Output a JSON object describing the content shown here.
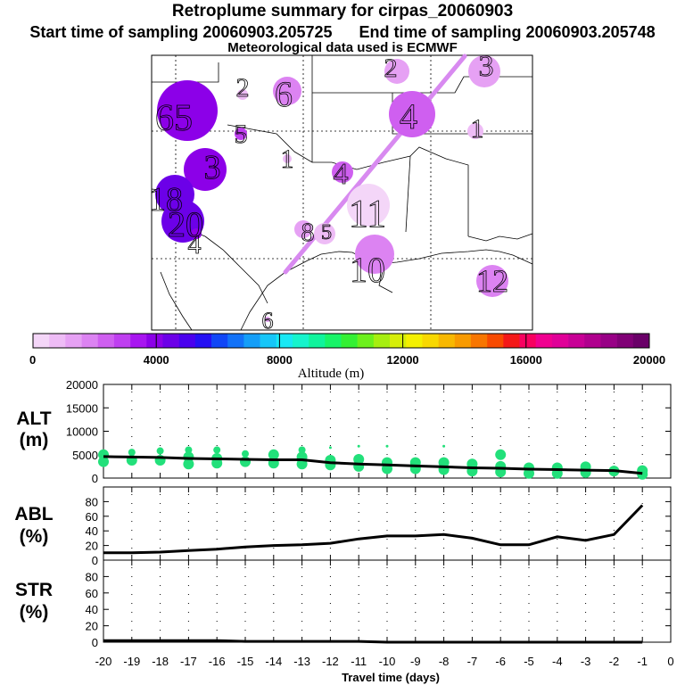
{
  "header": {
    "title": "Retroplume summary for cirpas_20060903",
    "start_label": "Start time of sampling 20060903.205725",
    "end_label": "End time of sampling 20060903.205748",
    "met_label": "Meteorological data used is ECMWF"
  },
  "colorbar": {
    "label": "Altitude (m)",
    "ticks": [
      "0",
      "4000",
      "8000",
      "12000",
      "16000",
      "20000"
    ],
    "colors": [
      "#f4d6f8",
      "#eebcf6",
      "#e6a1f4",
      "#dc83f2",
      "#cf5ff0",
      "#bf3ff0",
      "#a815f0",
      "#8c00e8",
      "#6c00e8",
      "#4a00ee",
      "#2410f4",
      "#1046f6",
      "#1272f8",
      "#149ef8",
      "#16c6f8",
      "#18e8f4",
      "#16f4cc",
      "#10f49c",
      "#18f468",
      "#34f034",
      "#6cf01c",
      "#a6ee10",
      "#d6ee08",
      "#f4f000",
      "#f8d800",
      "#f8b800",
      "#f89a00",
      "#f87600",
      "#f84a00",
      "#f41818",
      "#f80060",
      "#f00090",
      "#e00098",
      "#c80096",
      "#b0008e",
      "#980086",
      "#800076",
      "#6a0068"
    ],
    "min": 0,
    "max": 20000
  },
  "map": {
    "plume_color": "#d88af0",
    "markers": [
      {
        "label": "6",
        "alt": 1800
      },
      {
        "label": "2",
        "alt": 600
      },
      {
        "label": "5",
        "alt": 2800
      },
      {
        "label": "3",
        "alt": 1200
      },
      {
        "label": "2",
        "alt": 1500
      },
      {
        "label": "4",
        "alt": 2500
      },
      {
        "label": "1",
        "alt": 900
      },
      {
        "label": "1",
        "alt": 1000
      },
      {
        "label": "65",
        "alt": 4200
      },
      {
        "label": "3",
        "alt": 3800
      },
      {
        "label": "18",
        "alt": 4600
      },
      {
        "label": "20",
        "alt": 4400
      },
      {
        "label": "4",
        "alt": 4000
      },
      {
        "label": "11",
        "alt": 300
      },
      {
        "label": "8",
        "alt": 1300
      },
      {
        "label": "5",
        "alt": 900
      },
      {
        "label": "4",
        "alt": 2300
      },
      {
        "label": "10",
        "alt": 2000
      },
      {
        "label": "12",
        "alt": 1800
      },
      {
        "label": "6",
        "alt": 1500
      }
    ]
  },
  "chart_data": [
    {
      "type": "scatter",
      "panel": "ALT",
      "ylabel_line1": "ALT",
      "ylabel_line2": "(m)",
      "ylim": [
        0,
        20000
      ],
      "yticks": [
        "20000",
        "15000",
        "10000",
        "5000",
        "0"
      ],
      "point_color": "#22e07a",
      "series": [
        {
          "name": "mean altitude",
          "type": "line",
          "x": [
            -20,
            -19,
            -18,
            -17,
            -16,
            -15,
            -14,
            -13,
            -12,
            -11,
            -10,
            -9,
            -8,
            -7,
            -6,
            -5,
            -4,
            -3,
            -2,
            -1
          ],
          "y": [
            4600,
            4500,
            4400,
            4200,
            4100,
            4000,
            3900,
            3900,
            3300,
            3000,
            2800,
            2600,
            2400,
            2200,
            2100,
            1900,
            1800,
            1700,
            1600,
            1000
          ]
        },
        {
          "name": "plume percentiles",
          "type": "scatter",
          "x": [
            -20,
            -20,
            -19,
            -19,
            -18,
            -18,
            -17,
            -17,
            -17,
            -16,
            -16,
            -16,
            -15,
            -15,
            -14,
            -14,
            -13,
            -13,
            -13,
            -12,
            -12,
            -12,
            -11,
            -11,
            -11,
            -10,
            -10,
            -10,
            -9,
            -9,
            -8,
            -8,
            -8,
            -7,
            -7,
            -6,
            -6,
            -6,
            -5,
            -5,
            -4,
            -4,
            -3,
            -3,
            -2,
            -1,
            -1
          ],
          "y": [
            5000,
            3500,
            5500,
            3800,
            5800,
            3800,
            6000,
            4500,
            3000,
            6000,
            4200,
            3200,
            5200,
            3500,
            5000,
            3200,
            6000,
            4500,
            3000,
            6500,
            3800,
            2800,
            6800,
            4000,
            2500,
            6800,
            3300,
            2000,
            3300,
            2000,
            6800,
            3300,
            1800,
            3000,
            1500,
            5000,
            2500,
            1300,
            2200,
            1000,
            2200,
            1000,
            2400,
            1200,
            1500,
            1600,
            800
          ]
        }
      ]
    },
    {
      "type": "line",
      "panel": "ABL",
      "ylabel_line1": "ABL",
      "ylabel_line2": "(%)",
      "ylim": [
        0,
        100
      ],
      "yticks": [
        "80",
        "60",
        "40",
        "20",
        "0"
      ],
      "x": [
        -20,
        -19,
        -18,
        -17,
        -16,
        -15,
        -14,
        -13,
        -12,
        -11,
        -10,
        -9,
        -8,
        -7,
        -6,
        -5,
        -4,
        -3,
        -2,
        -1
      ],
      "y": [
        10,
        10,
        11,
        13,
        15,
        18,
        20,
        21,
        23,
        29,
        33,
        33,
        35,
        30,
        21,
        21,
        32,
        27,
        35,
        75
      ]
    },
    {
      "type": "line",
      "panel": "STR",
      "ylabel_line1": "STR",
      "ylabel_line2": "(%)",
      "ylim": [
        0,
        100
      ],
      "yticks": [
        "80",
        "60",
        "40",
        "20",
        "0"
      ],
      "x": [
        -20,
        -19,
        -18,
        -17,
        -16,
        -15,
        -14,
        -13,
        -12,
        -11,
        -10,
        -9,
        -8,
        -7,
        -6,
        -5,
        -4,
        -3,
        -2,
        -1
      ],
      "y": [
        2,
        2,
        2,
        2,
        2,
        1,
        1,
        1,
        1,
        1,
        0,
        0,
        0,
        0,
        0,
        0,
        0,
        0,
        0,
        0
      ]
    }
  ],
  "xaxis": {
    "label": "Travel time (days)",
    "ticks": [
      "-20",
      "-19",
      "-18",
      "-17",
      "-16",
      "-15",
      "-14",
      "-13",
      "-12",
      "-11",
      "-10",
      "-9",
      "-8",
      "-7",
      "-6",
      "-5",
      "-4",
      "-3",
      "-2",
      "-1",
      "0"
    ]
  }
}
